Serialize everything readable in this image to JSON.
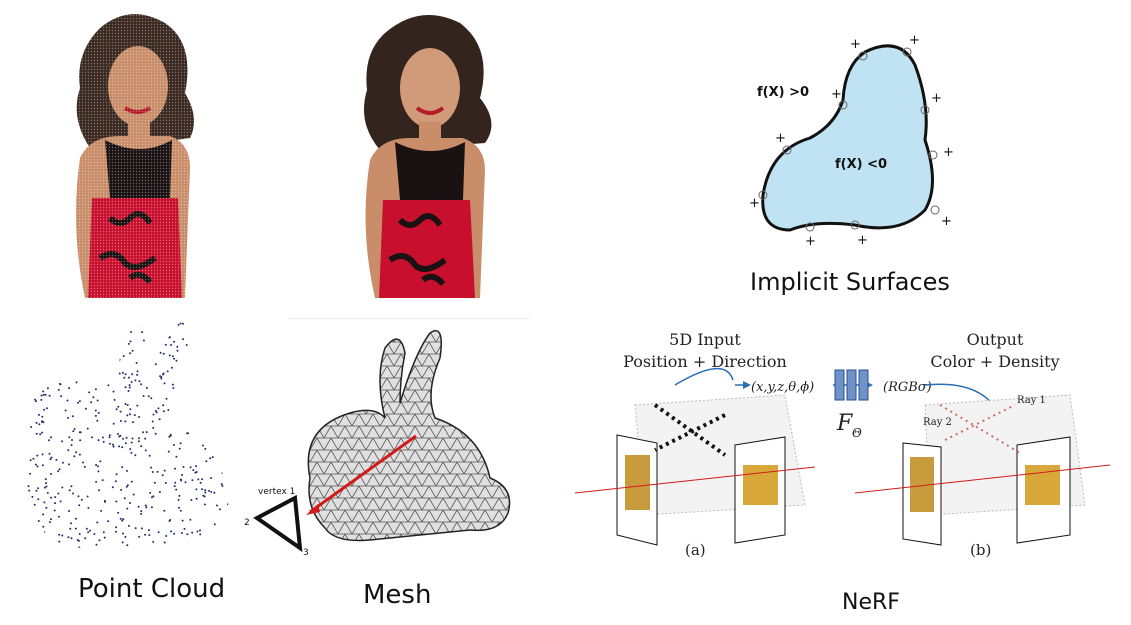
{
  "colors": {
    "skin": "#c98d6a",
    "hair": "#3b2a22",
    "dress_red": "#c8102e",
    "dress_black": "#1a1212",
    "blob_fill": "#bfe3f2",
    "blob_stroke": "#111111",
    "mesh_gray": "#cfcfcf",
    "arrow_red": "#d21a1a",
    "ray_blue": "#2a6fb8",
    "feature_box": "#6f93c9",
    "dot_navy": "#223066"
  },
  "implicit": {
    "outside_label": "f(X) >0",
    "inside_label": "f(X) <0",
    "plus": "+",
    "caption": "Implicit Surfaces"
  },
  "mesh": {
    "vertex_label": "vertex 1",
    "v2": "2",
    "v3": "3",
    "caption": "Mesh"
  },
  "point_cloud": {
    "caption": "Point Cloud"
  },
  "nerf": {
    "input_title_1": "5D Input",
    "input_title_2": "Position + Direction",
    "input_vars": "(x,y,z,θ,ϕ)",
    "network_label": "F",
    "network_sub": "Θ",
    "output_vars": "(RGBσ)",
    "output_title_1": "Output",
    "output_title_2": "Color + Density",
    "ray1": "Ray 1",
    "ray2": "Ray 2",
    "label_a": "(a)",
    "label_b": "(b)",
    "caption": "NeRF"
  }
}
